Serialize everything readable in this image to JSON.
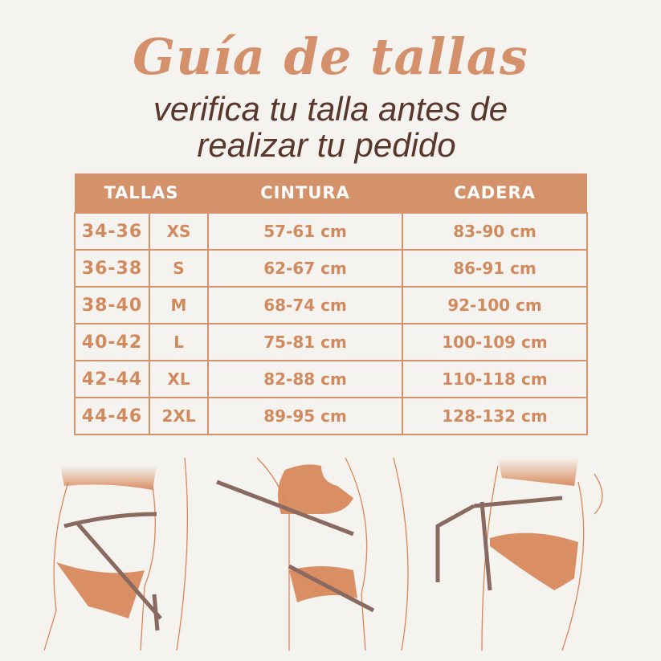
{
  "title": "Guía de tallas",
  "subtitle_line1": "verifica tu talla antes de",
  "subtitle_line2": "realizar tu pedido",
  "colors": {
    "accent": "#d4926a",
    "text": "#d08a5e",
    "subtitle": "#5a372b",
    "background": "#f5f3ef"
  },
  "table": {
    "headers": [
      "TALLAS",
      "CINTURA",
      "CADERA"
    ],
    "rows": [
      {
        "range": "34-36",
        "size": "XS",
        "cintura": "57-61 cm",
        "cadera": "83-90 cm"
      },
      {
        "range": "36-38",
        "size": "S",
        "cintura": "62-67 cm",
        "cadera": "86-91 cm"
      },
      {
        "range": "38-40",
        "size": "M",
        "cintura": "68-74 cm",
        "cadera": "92-100 cm"
      },
      {
        "range": "40-42",
        "size": "L",
        "cintura": "75-81 cm",
        "cadera": "100-109 cm"
      },
      {
        "range": "42-44",
        "size": "XL",
        "cintura": "82-88 cm",
        "cadera": "110-118 cm"
      },
      {
        "range": "44-46",
        "size": "2XL",
        "cintura": "89-95 cm",
        "cadera": "128-132 cm"
      }
    ]
  }
}
